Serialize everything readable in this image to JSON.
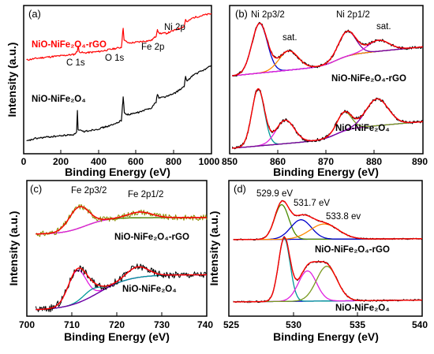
{
  "chart_data": [
    {
      "panel_label": "(a)",
      "type": "line",
      "xlabel": "Binding Energy (eV)",
      "ylabel": "Intensity (a.u.)",
      "xlim": [
        0,
        1000
      ],
      "xticks": [
        "0",
        "200",
        "400",
        "600",
        "800",
        "1000"
      ],
      "series": [
        {
          "name": "NiO-NiFe₂O₄-rGO",
          "color": "#ff0000",
          "points": [
            [
              15,
              0.64
            ],
            [
              60,
              0.65
            ],
            [
              120,
              0.66
            ],
            [
              200,
              0.67
            ],
            [
              270,
              0.68
            ],
            [
              285,
              0.7
            ],
            [
              290,
              0.74
            ],
            [
              295,
              0.7
            ],
            [
              320,
              0.69
            ],
            [
              400,
              0.7
            ],
            [
              480,
              0.72
            ],
            [
              520,
              0.73
            ],
            [
              525,
              0.8
            ],
            [
              530,
              0.87
            ],
            [
              535,
              0.78
            ],
            [
              560,
              0.76
            ],
            [
              620,
              0.77
            ],
            [
              680,
              0.78
            ],
            [
              705,
              0.81
            ],
            [
              712,
              0.86
            ],
            [
              720,
              0.83
            ],
            [
              760,
              0.83
            ],
            [
              800,
              0.85
            ],
            [
              855,
              0.88
            ],
            [
              862,
              0.93
            ],
            [
              870,
              0.91
            ],
            [
              900,
              0.94
            ],
            [
              960,
              0.96
            ],
            [
              1000,
              0.97
            ]
          ]
        },
        {
          "name": "NiO-NiFe₂O₄",
          "color": "#000000",
          "points": [
            [
              15,
              0.06
            ],
            [
              60,
              0.08
            ],
            [
              120,
              0.09
            ],
            [
              200,
              0.1
            ],
            [
              270,
              0.11
            ],
            [
              282,
              0.13
            ],
            [
              286,
              0.28
            ],
            [
              290,
              0.14
            ],
            [
              320,
              0.13
            ],
            [
              400,
              0.15
            ],
            [
              480,
              0.18
            ],
            [
              520,
              0.21
            ],
            [
              526,
              0.31
            ],
            [
              530,
              0.38
            ],
            [
              536,
              0.26
            ],
            [
              560,
              0.25
            ],
            [
              620,
              0.27
            ],
            [
              680,
              0.3
            ],
            [
              705,
              0.34
            ],
            [
              712,
              0.4
            ],
            [
              720,
              0.37
            ],
            [
              760,
              0.38
            ],
            [
              800,
              0.4
            ],
            [
              855,
              0.45
            ],
            [
              862,
              0.52
            ],
            [
              870,
              0.49
            ],
            [
              900,
              0.53
            ],
            [
              960,
              0.57
            ],
            [
              1000,
              0.6
            ]
          ]
        }
      ],
      "annotations": [
        "C 1s",
        "O 1s",
        "Fe 2p",
        "Ni 2p"
      ]
    },
    {
      "panel_label": "(b)",
      "type": "line",
      "xlabel": "Binding Energy (eV)",
      "ylabel": "",
      "xlim": [
        850,
        890
      ],
      "xticks": [
        "850",
        "860",
        "870",
        "880",
        "890"
      ],
      "samples": [
        "NiO-NiFe₂O₄-rGO",
        "NiO-NiFe₂O₄"
      ],
      "peaks": [
        {
          "label": "Ni 2p3/2",
          "x": 856.2
        },
        {
          "label": "sat.",
          "x": 862.2
        },
        {
          "label": "Ni 2p1/2",
          "x": 874.3
        },
        {
          "label": "sat.",
          "x": 880.8
        }
      ]
    },
    {
      "panel_label": "(c)",
      "type": "line",
      "xlabel": "Binding Energy (eV)",
      "ylabel": "Intensity (a.u.)",
      "xlim": [
        700,
        740
      ],
      "xticks": [
        "700",
        "710",
        "720",
        "730",
        "740"
      ],
      "samples": [
        "NiO-NiFe₂O₄-rGO",
        "NiO-NiFe₂O₄"
      ],
      "peaks": [
        {
          "label": "Fe 2p3/2",
          "x": 711.2
        },
        {
          "label": "Fe 2p1/2",
          "x": 724.6
        }
      ]
    },
    {
      "panel_label": "(d)",
      "type": "line",
      "xlabel": "Binding Energy (eV)",
      "ylabel": "Intensity (a.u.)",
      "xlim": [
        525,
        540
      ],
      "xticks": [
        "525",
        "530",
        "535",
        "540"
      ],
      "samples": [
        "NiO-NiFe₂O₄-rGO",
        "NiO-NiFe₂O₄"
      ],
      "peaks": [
        {
          "label": "529.9 eV",
          "x": 529.9
        },
        {
          "label": "531.7 eV",
          "x": 531.7
        },
        {
          "label": "533.8 ev",
          "x": 533.8
        }
      ]
    }
  ],
  "colors": {
    "exp": "#000000",
    "fit": "#ff0000",
    "rgo_exp_c": "#8b8b00",
    "teal": "#009999",
    "magenta": "#e020e0",
    "blue": "#0000cc",
    "orange": "#ff8800",
    "green": "#4a8a00",
    "darkred": "#6b1a00",
    "purple": "#7a00a0",
    "olive": "#7a9a20"
  }
}
